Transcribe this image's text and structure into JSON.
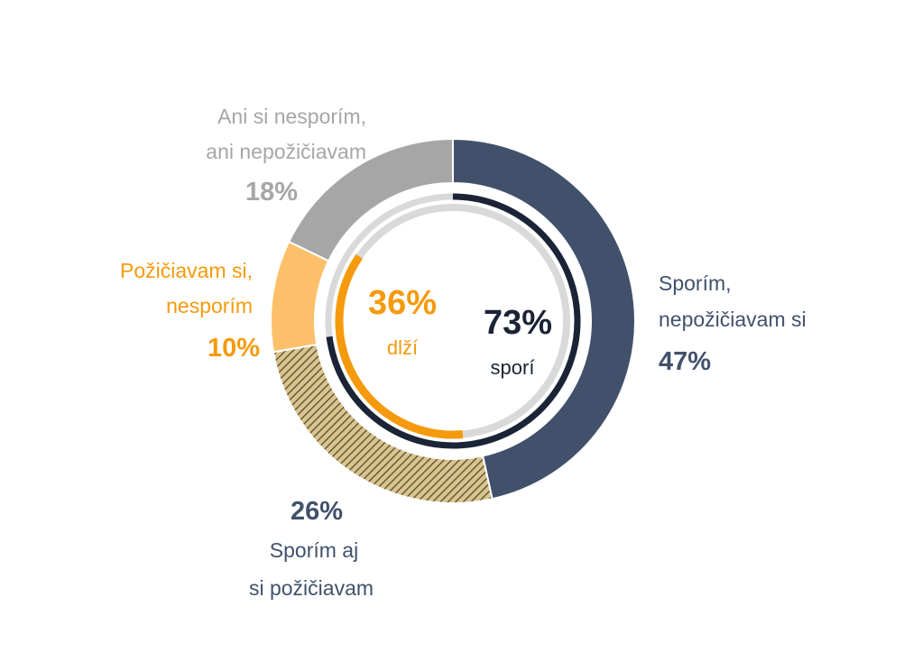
{
  "chart_data": {
    "type": "pie",
    "variant": "donut",
    "slices": [
      {
        "label_lines": [
          "Sporím,",
          "nepožičiavam si"
        ],
        "value": 47,
        "value_label": "47%",
        "color": "#41516b"
      },
      {
        "label_lines": [
          "Sporím aj",
          "si požičiavam"
        ],
        "value": 26,
        "value_label": "26%",
        "color": "#b89f66",
        "pattern": "diagonal-hatch",
        "text_color": "#41516b"
      },
      {
        "label_lines": [
          "Požičiavam si,",
          "nesporím"
        ],
        "value": 10,
        "value_label": "10%",
        "color": "#fdc06a",
        "text_color": "#f59a0c"
      },
      {
        "label_lines": [
          "Ani si nesporím,",
          "ani  nepožičiavam"
        ],
        "value": 18,
        "value_label": "18%",
        "color": "#a6a6a6"
      }
    ],
    "inner_rings": [
      {
        "name": "sporí",
        "value": 73,
        "value_label": "73%",
        "text": "sporí",
        "color": "#1b2436"
      },
      {
        "name": "dlží",
        "value": 36,
        "value_label": "36%",
        "text": "dlží",
        "color": "#f59a0c"
      }
    ],
    "track_color": "#d9d9d9"
  }
}
